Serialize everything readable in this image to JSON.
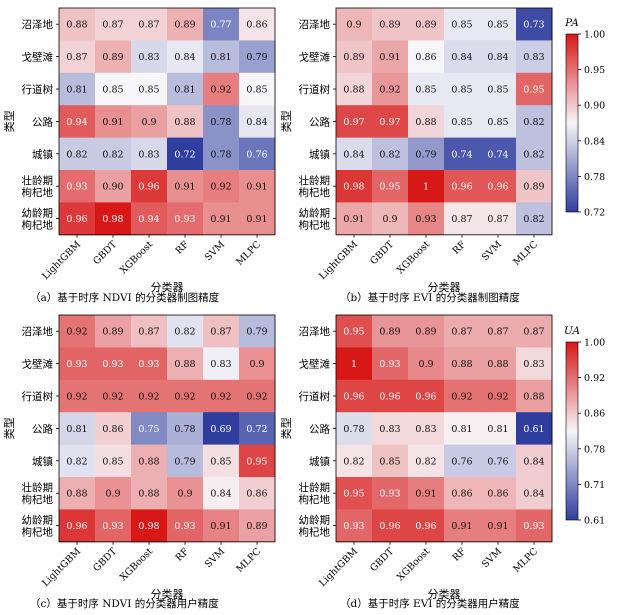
{
  "chart_data": [
    {
      "type": "heatmap",
      "panel": "a",
      "caption": "（a）基于时序 NDVI 的分类器制图精度",
      "xlabel": "分类器",
      "ylabel": "类型",
      "colorbar": null,
      "rows": [
        "沼泽地",
        "戈壁滩",
        "行道树",
        "公路",
        "城镇",
        "壮龄期枸杞地",
        "幼龄期枸杞地"
      ],
      "cols": [
        "LightGBM",
        "GBDT",
        "XGBoost",
        "RF",
        "SVM",
        "MLPC"
      ],
      "values": [
        [
          "0.88",
          "0.87",
          "0.87",
          "0.89",
          "0.77",
          "0.86"
        ],
        [
          "0.87",
          "0.89",
          "0.83",
          "0.84",
          "0.81",
          "0.79"
        ],
        [
          "0.81",
          "0.85",
          "0.85",
          "0.81",
          "0.92",
          "0.85"
        ],
        [
          "0.94",
          "0.91",
          "0.9",
          "0.88",
          "0.78",
          "0.84"
        ],
        [
          "0.82",
          "0.82",
          "0.83",
          "0.72",
          "0.78",
          "0.76"
        ],
        [
          "0.93",
          "0.90",
          "0.96",
          "0.91",
          "0.92",
          "0.91"
        ],
        [
          "0.96",
          "0.98",
          "0.94",
          "0.93",
          "0.91",
          "0.91"
        ]
      ]
    },
    {
      "type": "heatmap",
      "panel": "b",
      "caption": "（b）基于时序 EVI 的分类器制图精度",
      "xlabel": "分类器",
      "ylabel": "类型",
      "colorbar": {
        "label": "PA",
        "ticks": [
          "1.00",
          "0.95",
          "0.90",
          "0.84",
          "0.78",
          "0.72"
        ],
        "range": [
          0.72,
          1.0
        ]
      },
      "rows": [
        "沼泽地",
        "戈壁滩",
        "行道树",
        "公路",
        "城镇",
        "壮龄期枸杞地",
        "幼龄期枸杞地"
      ],
      "cols": [
        "LightGBM",
        "GBDT",
        "XGBoost",
        "RF",
        "SVM",
        "MLPC"
      ],
      "values": [
        [
          "0.9",
          "0.89",
          "0.89",
          "0.85",
          "0.85",
          "0.73"
        ],
        [
          "0.89",
          "0.91",
          "0.86",
          "0.84",
          "0.84",
          "0.83"
        ],
        [
          "0.88",
          "0.92",
          "0.85",
          "0.85",
          "0.85",
          "0.95"
        ],
        [
          "0.97",
          "0.97",
          "0.88",
          "0.85",
          "0.85",
          "0.82"
        ],
        [
          "0.84",
          "0.82",
          "0.79",
          "0.74",
          "0.74",
          "0.82"
        ],
        [
          "0.98",
          "0.95",
          "1",
          "0.96",
          "0.96",
          "0.89"
        ],
        [
          "0.91",
          "0.9",
          "0.93",
          "0.87",
          "0.87",
          "0.82"
        ]
      ]
    },
    {
      "type": "heatmap",
      "panel": "c",
      "caption": "（c）基于时序 NDVI 的分类器用户精度",
      "xlabel": "分类器",
      "ylabel": "类型",
      "colorbar": null,
      "rows": [
        "沼泽地",
        "戈壁滩",
        "行道树",
        "公路",
        "城镇",
        "壮龄期枸杞地",
        "幼龄期枸杞地"
      ],
      "cols": [
        "LightGBM",
        "GBDT",
        "XGBoost",
        "RF",
        "SVM",
        "MLPC"
      ],
      "values": [
        [
          "0.92",
          "0.89",
          "0.87",
          "0.82",
          "0.87",
          "0.79"
        ],
        [
          "0.93",
          "0.93",
          "0.93",
          "0.88",
          "0.83",
          "0.9"
        ],
        [
          "0.92",
          "0.92",
          "0.92",
          "0.92",
          "0.92",
          "0.92"
        ],
        [
          "0.81",
          "0.86",
          "0.75",
          "0.78",
          "0.69",
          "0.72"
        ],
        [
          "0.82",
          "0.85",
          "0.88",
          "0.79",
          "0.85",
          "0.95"
        ],
        [
          "0.88",
          "0.9",
          "0.88",
          "0.9",
          "0.84",
          "0.86"
        ],
        [
          "0.96",
          "0.93",
          "0.98",
          "0.93",
          "0.91",
          "0.89"
        ]
      ]
    },
    {
      "type": "heatmap",
      "panel": "d",
      "caption": "（d）基于时序 EVI 的分类器用户精度",
      "xlabel": "分类器",
      "ylabel": "类型",
      "colorbar": {
        "label": "UA",
        "ticks": [
          "1.00",
          "0.92",
          "0.86",
          "0.78",
          "0.71",
          "0.61"
        ],
        "range": [
          0.61,
          1.0
        ]
      },
      "rows": [
        "沼泽地",
        "戈壁滩",
        "行道树",
        "公路",
        "城镇",
        "壮龄期枸杞地",
        "幼龄期枸杞地"
      ],
      "cols": [
        "LightGBM",
        "GBDT",
        "XGBoost",
        "RF",
        "SVM",
        "MLPC"
      ],
      "values": [
        [
          "0.95",
          "0.89",
          "0.89",
          "0.87",
          "0.87",
          "0.87"
        ],
        [
          "1",
          "0.93",
          "0.9",
          "0.88",
          "0.88",
          "0.83"
        ],
        [
          "0.96",
          "0.96",
          "0.96",
          "0.92",
          "0.92",
          "0.88"
        ],
        [
          "0.78",
          "0.83",
          "0.83",
          "0.81",
          "0.81",
          "0.61"
        ],
        [
          "0.82",
          "0.85",
          "0.82",
          "0.76",
          "0.76",
          "0.84"
        ],
        [
          "0.95",
          "0.93",
          "0.91",
          "0.86",
          "0.86",
          "0.84"
        ],
        [
          "0.93",
          "0.96",
          "0.96",
          "0.91",
          "0.91",
          "0.93"
        ]
      ]
    }
  ],
  "colors": {
    "low": "#2f3e9e",
    "mid": "#f6f5f8",
    "high": "#d81717"
  }
}
